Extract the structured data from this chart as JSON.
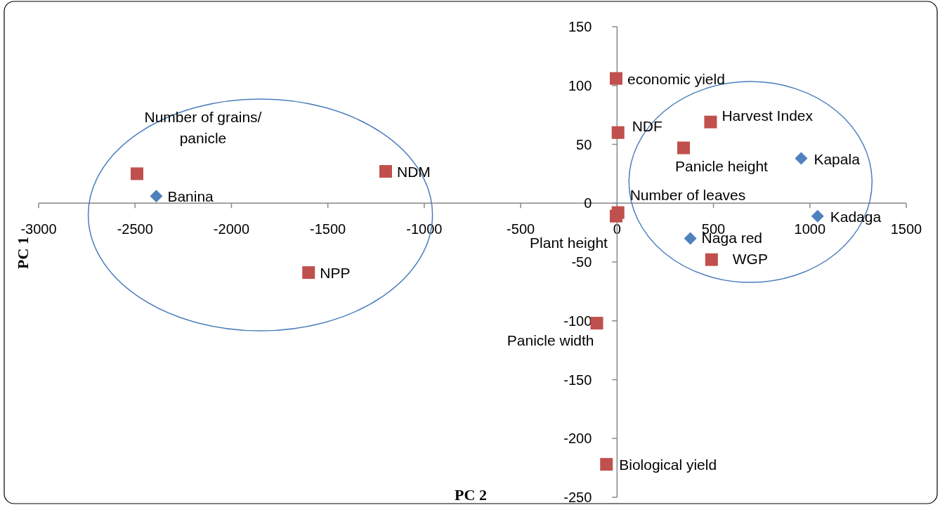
{
  "chart_data": {
    "type": "scatter",
    "xlabel": "PC 2",
    "ylabel": "PC 1",
    "xlim": [
      -3000,
      1500
    ],
    "xticks": [
      -3000,
      -2500,
      -2000,
      -1500,
      -1000,
      -500,
      0,
      500,
      1000,
      1500
    ],
    "ylim": [
      -250,
      150
    ],
    "yticks": [
      -250,
      -200,
      -150,
      -100,
      -50,
      0,
      50,
      100,
      150
    ],
    "grid": false,
    "series": [
      {
        "color": "#4f81bd",
        "marker": "diamond",
        "x": [
          -2390,
          955,
          1040,
          380
        ],
        "values": [
          6,
          38,
          -11,
          -30
        ]
      },
      {
        "color": "#c0504d",
        "marker": "square",
        "x": [
          -2490,
          -1200,
          -1600,
          -5,
          5,
          485,
          345,
          5,
          -5,
          490,
          -105,
          -55
        ],
        "values": [
          25,
          27,
          -59,
          106,
          60,
          69,
          47,
          -8,
          -11,
          -48,
          -102,
          -222
        ]
      }
    ],
    "annotations": [
      {
        "text": "Banina",
        "x": -2390,
        "y": 6
      },
      {
        "text": "Kapala",
        "x": 955,
        "y": 38
      },
      {
        "text": "Kadaga",
        "x": 1040,
        "y": -11
      },
      {
        "text": "Naga red",
        "x": 380,
        "y": -30
      },
      {
        "text": "Number of grains/ panicle",
        "x": -2490,
        "y": 25
      },
      {
        "text": "NDM",
        "x": -1200,
        "y": 27
      },
      {
        "text": "NPP",
        "x": -1600,
        "y": -59
      },
      {
        "text": "economic yield",
        "x": -5,
        "y": 106
      },
      {
        "text": "NDF",
        "x": 5,
        "y": 60
      },
      {
        "text": "Harvest Index",
        "x": 485,
        "y": 69
      },
      {
        "text": "Panicle height",
        "x": 345,
        "y": 47
      },
      {
        "text": "Number of leaves",
        "x": 5,
        "y": -8
      },
      {
        "text": "Plant height",
        "x": -5,
        "y": -11
      },
      {
        "text": "WGP",
        "x": 490,
        "y": -48
      },
      {
        "text": "Panicle width",
        "x": -105,
        "y": -102
      },
      {
        "text": "Biological yield",
        "x": -55,
        "y": -222
      }
    ]
  }
}
